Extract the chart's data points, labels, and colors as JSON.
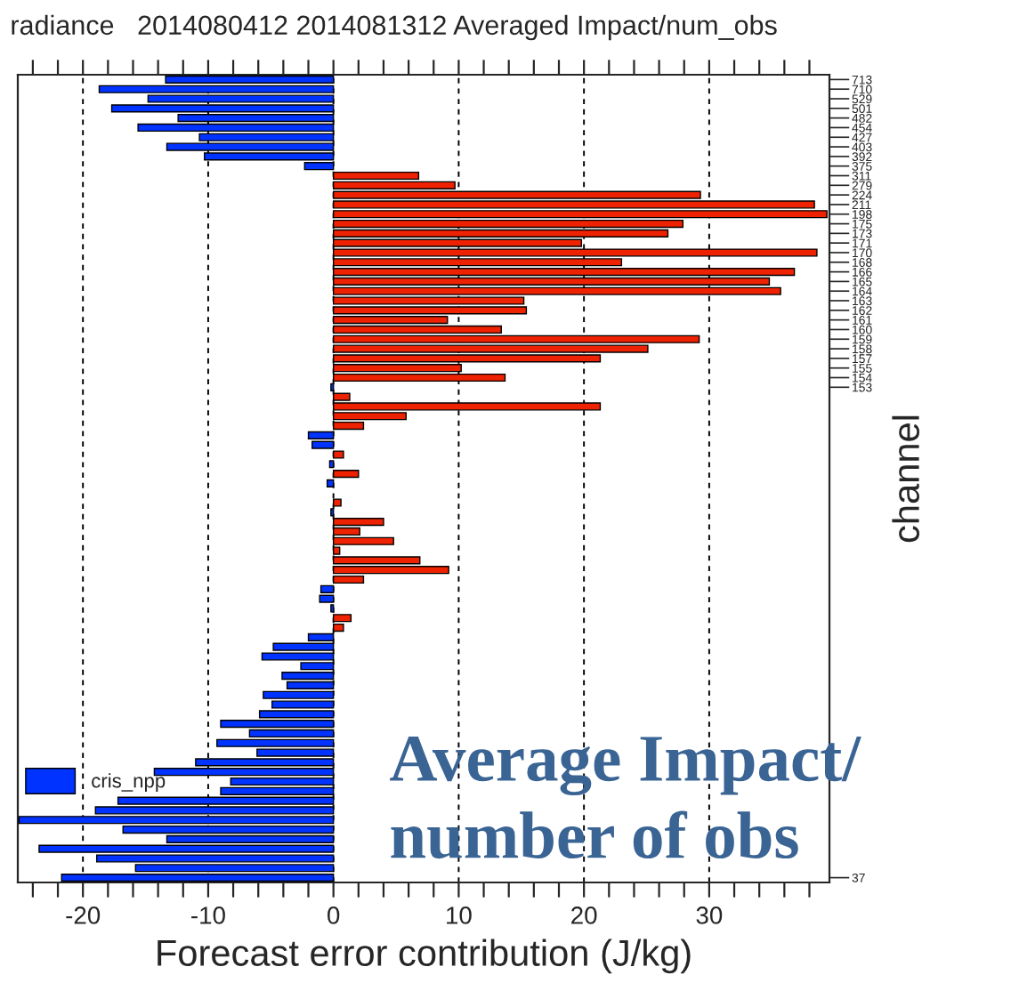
{
  "chart_data": {
    "type": "bar",
    "orientation": "horizontal",
    "title": "radiance   2014080412 2014081312 Averaged Impact/num_obs",
    "xlabel": "Forecast error contribution (J/kg)",
    "ylabel": "channel",
    "categories": [
      "713",
      "710",
      "529",
      "501",
      "482",
      "454",
      "427",
      "403",
      "392",
      "375",
      "311",
      "279",
      "224",
      "211",
      "198",
      "175",
      "173",
      "171",
      "170",
      "168",
      "166",
      "165",
      "164",
      "163",
      "162",
      "161",
      "160",
      "159",
      "158",
      "157",
      "155",
      "154",
      "153",
      null,
      null,
      null,
      null,
      null,
      null,
      null,
      null,
      null,
      null,
      null,
      null,
      null,
      null,
      null,
      null,
      null,
      null,
      null,
      null,
      null,
      null,
      null,
      null,
      null,
      null,
      null,
      null,
      null,
      null,
      null,
      null,
      null,
      null,
      null,
      null,
      null,
      null,
      null,
      null,
      null,
      null,
      null,
      null,
      null,
      null,
      null,
      null,
      null,
      null,
      "37"
    ],
    "series": [
      {
        "name": "cris_npp",
        "color": "#0033ff",
        "values": [
          -13.4,
          -18.7,
          -14.8,
          -17.7,
          -12.4,
          -15.6,
          -10.7,
          -13.3,
          -10.3,
          -2.3,
          6.8,
          9.7,
          29.3,
          38.4,
          39.4,
          27.9,
          26.7,
          19.8,
          38.6,
          23.0,
          36.8,
          34.8,
          35.7,
          15.2,
          15.4,
          9.1,
          13.4,
          29.2,
          25.1,
          21.3,
          10.2,
          13.7,
          -0.2,
          1.3,
          21.3,
          5.8,
          2.4,
          -2.0,
          -1.7,
          0.8,
          -0.3,
          2.0,
          -0.5,
          null,
          0.6,
          -0.2,
          4.0,
          2.1,
          4.8,
          0.5,
          6.9,
          9.2,
          2.4,
          -1.0,
          -1.1,
          -0.2,
          1.4,
          0.8,
          -2.0,
          -4.8,
          -5.7,
          -2.6,
          -4.1,
          -3.7,
          -5.6,
          -4.9,
          -5.9,
          -9.0,
          -6.7,
          -9.3,
          -6.1,
          -11.0,
          -14.3,
          -8.2,
          -9.0,
          -17.2,
          -19.0,
          -25.1,
          -16.8,
          -13.3,
          -23.5,
          -18.9,
          -15.8,
          -21.7
        ],
        "colors": [
          "#0033ff",
          "#0033ff",
          "#0033ff",
          "#0033ff",
          "#0033ff",
          "#0033ff",
          "#0033ff",
          "#0033ff",
          "#0033ff",
          "#0033ff",
          "#ee2200",
          "#ee2200",
          "#ee2200",
          "#ee2200",
          "#ee2200",
          "#ee2200",
          "#ee2200",
          "#ee2200",
          "#ee2200",
          "#ee2200",
          "#ee2200",
          "#ee2200",
          "#ee2200",
          "#ee2200",
          "#ee2200",
          "#ee2200",
          "#ee2200",
          "#ee2200",
          "#ee2200",
          "#ee2200",
          "#ee2200",
          "#ee2200",
          "#0033ff",
          "#ee2200",
          "#ee2200",
          "#ee2200",
          "#ee2200",
          "#0033ff",
          "#0033ff",
          "#ee2200",
          "#0033ff",
          "#ee2200",
          "#0033ff",
          "#0033ff",
          "#ee2200",
          "#0033ff",
          "#ee2200",
          "#ee2200",
          "#ee2200",
          "#ee2200",
          "#ee2200",
          "#ee2200",
          "#ee2200",
          "#0033ff",
          "#0033ff",
          "#0033ff",
          "#ee2200",
          "#ee2200",
          "#0033ff",
          "#0033ff",
          "#0033ff",
          "#0033ff",
          "#0033ff",
          "#0033ff",
          "#0033ff",
          "#0033ff",
          "#0033ff",
          "#0033ff",
          "#0033ff",
          "#0033ff",
          "#0033ff",
          "#0033ff",
          "#0033ff",
          "#0033ff",
          "#0033ff",
          "#0033ff",
          "#0033ff",
          "#0033ff",
          "#0033ff",
          "#0033ff",
          "#0033ff",
          "#0033ff",
          "#0033ff",
          "#0033ff"
        ]
      }
    ],
    "xlim": [
      -25.2,
      39.6
    ],
    "xticks": [
      {
        "value": -24,
        "label": null
      },
      {
        "value": -22,
        "label": null
      },
      -20,
      {
        "value": -18,
        "label": null
      },
      {
        "value": -16,
        "label": null
      },
      {
        "value": -14,
        "label": null
      },
      {
        "value": -12,
        "label": null
      },
      -10,
      {
        "value": -8,
        "label": null
      },
      {
        "value": -6,
        "label": null
      },
      {
        "value": -4,
        "label": null
      },
      {
        "value": -2,
        "label": null
      },
      0,
      {
        "value": 2,
        "label": null
      },
      {
        "value": 4,
        "label": null
      },
      {
        "value": 6,
        "label": null
      },
      {
        "value": 8,
        "label": null
      },
      10,
      {
        "value": 12,
        "label": null
      },
      {
        "value": 14,
        "label": null
      },
      {
        "value": 16,
        "label": null
      },
      {
        "value": 18,
        "label": null
      },
      20,
      {
        "value": 22,
        "label": null
      },
      {
        "value": 24,
        "label": null
      },
      {
        "value": 26,
        "label": null
      },
      {
        "value": 28,
        "label": null
      },
      30,
      {
        "value": 32,
        "label": null
      },
      {
        "value": 34,
        "label": null
      },
      {
        "value": 36,
        "label": null
      },
      {
        "value": 38,
        "label": null
      }
    ],
    "grid": "x",
    "legend": "bottom left",
    "annotations": [
      "Average Impact/\nnumber of obs"
    ]
  }
}
